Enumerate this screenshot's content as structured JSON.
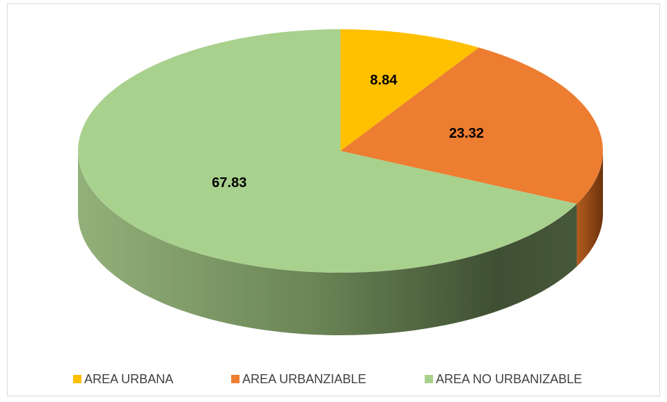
{
  "chart_data": {
    "type": "pie",
    "categories": [
      "AREA URBANA",
      "AREA URBANZIABLE",
      "AREA NO URBANIZABLE"
    ],
    "values": [
      8.84,
      23.32,
      67.83
    ],
    "colors": [
      "#ffc000",
      "#ed7d31",
      "#a9d18e"
    ],
    "legend": "bottom"
  }
}
